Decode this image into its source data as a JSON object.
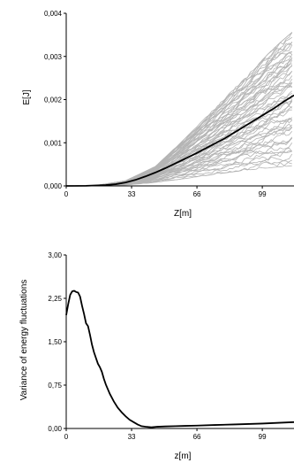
{
  "chart_data": [
    {
      "type": "line",
      "xlabel": "Z[m]",
      "ylabel": "E[J]",
      "xlim": [
        0,
        115
      ],
      "ylim": [
        0,
        0.004
      ],
      "x_ticks": [
        "0",
        "33",
        "66",
        "99"
      ],
      "y_ticks": [
        "0,000",
        "0,001",
        "0,002",
        "0,003",
        "0,004"
      ],
      "grid": false,
      "colors": {
        "ensemble": "#b4b4b4",
        "mean": "#000000"
      },
      "ensemble_description": "many gray realization curves, starting near zero around z=15 and fanning out; values at z=115 range from about 0.0005 to 0.0036",
      "ensemble_envelope": {
        "x": [
          0,
          15,
          30,
          45,
          60,
          75,
          90,
          105,
          115
        ],
        "lower": [
          0,
          0,
          2e-05,
          8e-05,
          0.00017,
          0.00027,
          0.00036,
          0.00043,
          0.00047
        ],
        "upper": [
          0,
          1e-05,
          0.00012,
          0.00045,
          0.0011,
          0.0018,
          0.0025,
          0.0032,
          0.0036
        ]
      },
      "series": [
        {
          "x": [
            0,
            10,
            20,
            25,
            30,
            35,
            40,
            45,
            50,
            55,
            60,
            65,
            70,
            75,
            80,
            85,
            90,
            95,
            100,
            105,
            110,
            115
          ],
          "values": [
            0,
            3e-06,
            2e-05,
            4e-05,
            8e-05,
            0.00014,
            0.00022,
            0.00031,
            0.00041,
            0.00052,
            0.00063,
            0.00074,
            0.00086,
            0.00098,
            0.0011,
            0.00124,
            0.00138,
            0.00152,
            0.00166,
            0.0018,
            0.00196,
            0.0021
          ]
        }
      ]
    },
    {
      "type": "line",
      "xlabel": "z[m]",
      "ylabel": "Variance of energy fluctuations",
      "xlim": [
        0,
        115
      ],
      "ylim": [
        0,
        3
      ],
      "x_ticks": [
        "0",
        "33",
        "66",
        "99"
      ],
      "y_ticks": [
        "0,00",
        "0,75",
        "1,50",
        "2,25",
        "3,00"
      ],
      "grid": false,
      "series": [
        {
          "x": [
            0,
            1,
            2,
            3,
            4,
            5,
            6,
            7,
            8,
            9,
            10,
            11,
            12,
            13,
            14,
            15,
            16,
            17,
            18,
            19,
            20,
            22,
            24,
            26,
            28,
            30,
            32,
            34,
            36,
            38,
            40,
            43,
            46,
            50,
            55,
            60,
            66,
            75,
            85,
            99,
            115
          ],
          "values": [
            1.96,
            2.15,
            2.31,
            2.37,
            2.38,
            2.36,
            2.35,
            2.28,
            2.12,
            1.98,
            1.82,
            1.77,
            1.62,
            1.45,
            1.32,
            1.22,
            1.12,
            1.06,
            0.98,
            0.86,
            0.76,
            0.6,
            0.47,
            0.36,
            0.28,
            0.21,
            0.15,
            0.11,
            0.07,
            0.04,
            0.03,
            0.02,
            0.03,
            0.035,
            0.04,
            0.045,
            0.05,
            0.06,
            0.07,
            0.085,
            0.11
          ]
        }
      ]
    }
  ]
}
